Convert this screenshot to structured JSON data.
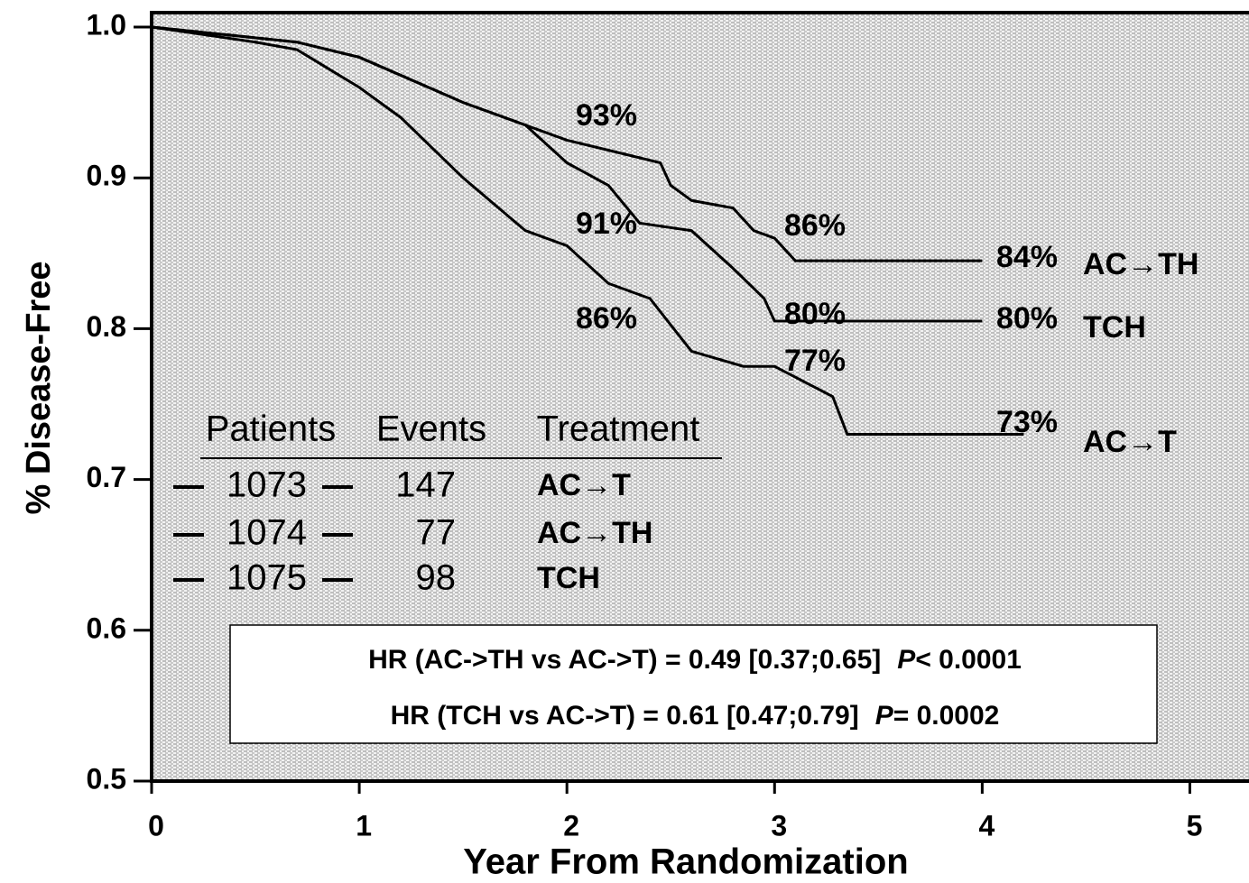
{
  "chart_data": {
    "type": "line",
    "xlabel": "Year From Randomization",
    "ylabel": "% Disease-Free",
    "xlim": [
      0,
      5.25
    ],
    "ylim": [
      0.5,
      1.0
    ],
    "xticks": [
      0,
      1,
      2,
      3,
      4,
      5
    ],
    "yticks": [
      0.5,
      0.6,
      0.7,
      0.8,
      0.9,
      {
        "value": 1.0,
        "label": "1.0"
      }
    ],
    "series": [
      {
        "name": "AC→T",
        "color": "#000000",
        "x": [
          0,
          0.5,
          0.7,
          1.0,
          1.2,
          1.5,
          1.8,
          2.0,
          2.2,
          2.4,
          2.6,
          2.85,
          3.0,
          3.28,
          3.35,
          4.2
        ],
        "values": [
          1.0,
          0.99,
          0.985,
          0.96,
          0.94,
          0.9,
          0.865,
          0.855,
          0.83,
          0.82,
          0.785,
          0.775,
          0.775,
          0.755,
          0.73,
          0.73
        ]
      },
      {
        "name": "AC→TH",
        "color": "#000000",
        "x": [
          0,
          0.7,
          1.0,
          1.5,
          2.0,
          2.3,
          2.45,
          2.5,
          2.6,
          2.8,
          2.9,
          3.0,
          3.1,
          4.0
        ],
        "values": [
          1.0,
          0.99,
          0.98,
          0.95,
          0.925,
          0.915,
          0.91,
          0.895,
          0.885,
          0.88,
          0.865,
          0.86,
          0.845,
          0.845
        ]
      },
      {
        "name": "TCH",
        "color": "#000000",
        "x": [
          0,
          0.7,
          1.0,
          1.5,
          1.8,
          2.0,
          2.2,
          2.35,
          2.6,
          2.8,
          2.95,
          3.0,
          4.0
        ],
        "values": [
          1.0,
          0.99,
          0.98,
          0.95,
          0.935,
          0.91,
          0.895,
          0.87,
          0.865,
          0.84,
          0.82,
          0.805,
          0.805
        ]
      }
    ],
    "annotations": [
      "93%",
      "91%",
      "86%",
      "86%",
      "80%",
      "77%",
      "84%",
      "80%",
      "73%"
    ],
    "legend_table": {
      "headers": [
        "Patients",
        "Events",
        "Treatment"
      ],
      "rows": [
        [
          1073,
          147
        ],
        [
          1074,
          77
        ],
        [
          1075,
          98
        ]
      ]
    },
    "hr_box": [
      [
        "HR (AC->TH vs AC->T) = 0.49  [0.37;0.65]",
        "P",
        "< 0.0001"
      ],
      [
        "HR (TCH vs AC->T)  = 0.61 [0.47;0.79]",
        "P",
        "= 0.0002"
      ]
    ]
  }
}
